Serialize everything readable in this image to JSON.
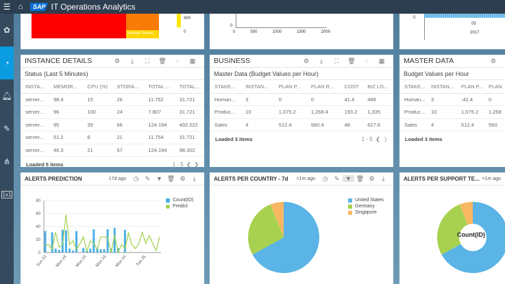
{
  "app": {
    "title": "IT Operations Analytics",
    "logo": "SAP"
  },
  "sidebar": {
    "items": [
      {
        "icon": "gear-cluster-icon",
        "active": false
      },
      {
        "icon": "gauge-icon",
        "active": true
      },
      {
        "icon": "bell-icon",
        "active": false
      },
      {
        "icon": "edit-document-icon",
        "active": false
      },
      {
        "icon": "network-icon",
        "active": false
      },
      {
        "label": "1x1",
        "active": false
      }
    ]
  },
  "top_row": {
    "treemap_label": "Human Resou",
    "treemap_scale": [
      "400",
      "0"
    ],
    "axis_x": [
      "0",
      "500",
      "1000",
      "1500",
      "2000"
    ],
    "axis_y": [
      "0"
    ],
    "time_axis": {
      "y": "0",
      "tick": "05",
      "year": "2017"
    }
  },
  "instance_details": {
    "title": "INSTANCE DETAILS",
    "subtitle": "Status (Last 5 Minutes)",
    "columns": [
      "INSTA...",
      "MEMOR...",
      "CPU (%)",
      "STORA...",
      "TOTAL ...",
      "TOTAL..."
    ],
    "rows": [
      [
        "server...",
        "98.4",
        "15",
        "26",
        "11.752",
        "31.721"
      ],
      [
        "server...",
        "96",
        "100",
        "24",
        "7.807",
        "31.721"
      ],
      [
        "server...",
        "95",
        "39",
        "66",
        "124.194",
        "492.022"
      ],
      [
        "server...",
        "51.2",
        "8",
        "21",
        "11.754",
        "31.721"
      ],
      [
        "server...",
        "46.3",
        "21",
        "57",
        "124.194",
        "98.302"
      ]
    ],
    "footer": "Loaded 5 items",
    "paging": "1 - 5"
  },
  "business": {
    "title": "BUSINESS",
    "subtitle": "Master Data (Budget Values per Hour)",
    "columns": [
      "STAKE...",
      "INSTAN...",
      "PLAN P...",
      "PLAN R...",
      "COST",
      "BIZ LO..."
    ],
    "rows": [
      [
        "Human...",
        "3",
        "0",
        "0",
        "41.4",
        "468"
      ],
      [
        "Produc...",
        "10",
        "1,075.2",
        "1,268.4",
        "193.2",
        "1,335"
      ],
      [
        "Sales",
        "4",
        "512.4",
        "560.4",
        "48",
        "627.6"
      ]
    ],
    "footer": "Loaded 3 items",
    "paging": "1 - 5"
  },
  "master_data": {
    "title": "MASTER DATA",
    "subtitle": "Budget Values per Hour",
    "columns": [
      "STAKE...",
      "INSTAN...",
      "PLAN P...",
      "PLAN"
    ],
    "rows": [
      [
        "Human...",
        "3",
        "-41.4",
        "0"
      ],
      [
        "Produc...",
        "10",
        "1,075.2",
        "1,268"
      ],
      [
        "Sales",
        "4",
        "512.4",
        "560."
      ]
    ],
    "footer": "Loaded 3 items"
  },
  "alerts_prediction": {
    "title": "ALERTS PREDICTION",
    "ago": "17d ago"
  },
  "alerts_country": {
    "title": "ALERTS PER COUNTRY - 7d",
    "ago": "<1m ago"
  },
  "alerts_team": {
    "title": "ALERTS PER SUPPORT TE...",
    "ago": "<1m ago",
    "center_label": "Count(ID)"
  },
  "chart_data": [
    {
      "type": "bar+line",
      "ylim": [
        0,
        80
      ],
      "yticks": [
        "0",
        "20",
        "40",
        "60",
        "80"
      ],
      "xticks": [
        "Sun 23",
        "Mon 24",
        "Mon 24",
        "Mon 24",
        "Mon 24",
        "Tue 25"
      ],
      "legend": "top-right",
      "series": [
        {
          "name": "Count(ID)",
          "type": "bar",
          "color": "#4ab0e3",
          "values": [
            33,
            0,
            31,
            6,
            4,
            35,
            34,
            6,
            3,
            33,
            0,
            7,
            3,
            6,
            36,
            7,
            5,
            5,
            36,
            6,
            38,
            7,
            0,
            35,
            null,
            null,
            null,
            null,
            null,
            null,
            null,
            null,
            null,
            null
          ]
        },
        {
          "name": "Predict",
          "type": "line",
          "color": "#9fd14b",
          "values": [
            12,
            12,
            5,
            31,
            8,
            12,
            58,
            12,
            18,
            5,
            13,
            24,
            2,
            18,
            14,
            5,
            24,
            24,
            23,
            0,
            27,
            0,
            12,
            6,
            30,
            12,
            6,
            14,
            31,
            14,
            26,
            14,
            3,
            24
          ]
        }
      ]
    },
    {
      "type": "pie",
      "categories": [
        "United States",
        "Germany",
        "Singapore"
      ],
      "values": [
        67,
        27,
        6
      ],
      "colors": [
        "#5ab4e5",
        "#a8d14f",
        "#f8b863"
      ],
      "legend": "top-right"
    },
    {
      "type": "donut",
      "categories": [
        "United States",
        "Germany",
        "Singapore"
      ],
      "values": [
        67,
        27,
        6
      ],
      "colors": [
        "#5ab4e5",
        "#a8d14f",
        "#f8b863"
      ]
    }
  ]
}
